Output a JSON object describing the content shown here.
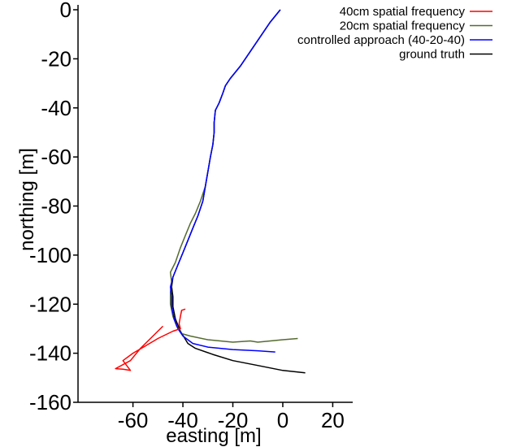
{
  "chart_data": {
    "type": "line",
    "xlabel": "easting [m]",
    "ylabel": "northing [m]",
    "xlim": [
      -82,
      28
    ],
    "ylim": [
      -160,
      0
    ],
    "xticks": [
      -60,
      -40,
      -20,
      0,
      20
    ],
    "yticks": [
      0,
      -20,
      -40,
      -60,
      -80,
      -100,
      -120,
      -140,
      -160
    ],
    "grid": false,
    "legend_position": "top-right",
    "series": [
      {
        "name": "40cm spatial frequency",
        "color": "#ff0000",
        "points": [
          [
            -39,
            -122
          ],
          [
            -40.5,
            -122.5
          ],
          [
            -41,
            -125
          ],
          [
            -41.5,
            -128
          ],
          [
            -41,
            -130
          ],
          [
            -44,
            -131
          ],
          [
            -50,
            -134
          ],
          [
            -55,
            -137
          ],
          [
            -60,
            -140
          ],
          [
            -64,
            -143
          ],
          [
            -61,
            -147
          ],
          [
            -64,
            -146.5
          ],
          [
            -67,
            -146.3
          ],
          [
            -61,
            -143
          ],
          [
            -57,
            -138
          ],
          [
            -52,
            -133
          ],
          [
            -48,
            -129
          ]
        ]
      },
      {
        "name": "20cm spatial frequency",
        "color": "#556b2f",
        "points": [
          [
            -1,
            0
          ],
          [
            -5,
            -5
          ],
          [
            -9,
            -11
          ],
          [
            -13,
            -17
          ],
          [
            -17,
            -23
          ],
          [
            -21,
            -28
          ],
          [
            -23,
            -31
          ],
          [
            -24,
            -34
          ],
          [
            -25.5,
            -38
          ],
          [
            -27,
            -41
          ],
          [
            -27.5,
            -46
          ],
          [
            -27.5,
            -50
          ],
          [
            -28,
            -55
          ],
          [
            -29,
            -60
          ],
          [
            -30,
            -66
          ],
          [
            -31,
            -72
          ],
          [
            -33,
            -78
          ],
          [
            -35,
            -83
          ],
          [
            -37,
            -87
          ],
          [
            -39,
            -92
          ],
          [
            -41,
            -97
          ],
          [
            -43,
            -103
          ],
          [
            -45,
            -107
          ],
          [
            -44.5,
            -111
          ],
          [
            -45,
            -115
          ],
          [
            -45,
            -120
          ],
          [
            -44,
            -125
          ],
          [
            -42.5,
            -129
          ],
          [
            -40.5,
            -132
          ],
          [
            -37,
            -133
          ],
          [
            -30,
            -134.5
          ],
          [
            -20,
            -135.5
          ],
          [
            -13,
            -135
          ],
          [
            -10,
            -135.5
          ],
          [
            -5,
            -135
          ],
          [
            0,
            -134.5
          ],
          [
            6,
            -134
          ]
        ]
      },
      {
        "name": "controlled approach (40-20-40)",
        "color": "#0000ff",
        "points": [
          [
            -1,
            0
          ],
          [
            -5,
            -5
          ],
          [
            -9,
            -11
          ],
          [
            -13,
            -17
          ],
          [
            -17,
            -23
          ],
          [
            -21,
            -28
          ],
          [
            -23,
            -31
          ],
          [
            -24,
            -34
          ],
          [
            -25.5,
            -38
          ],
          [
            -27,
            -41
          ],
          [
            -27.5,
            -46
          ],
          [
            -27.5,
            -50
          ],
          [
            -28,
            -55
          ],
          [
            -29,
            -60
          ],
          [
            -30,
            -66
          ],
          [
            -31,
            -72
          ],
          [
            -32,
            -78
          ],
          [
            -34,
            -84
          ],
          [
            -36,
            -89
          ],
          [
            -38,
            -94
          ],
          [
            -40,
            -99
          ],
          [
            -42,
            -104
          ],
          [
            -44,
            -109
          ],
          [
            -45,
            -113
          ],
          [
            -44.5,
            -117
          ],
          [
            -44.5,
            -121
          ],
          [
            -43.5,
            -126
          ],
          [
            -42,
            -130
          ],
          [
            -40,
            -133
          ],
          [
            -36,
            -136
          ],
          [
            -30,
            -137.5
          ],
          [
            -20,
            -138.5
          ],
          [
            -10,
            -139
          ],
          [
            -3,
            -139.5
          ]
        ]
      },
      {
        "name": "ground truth",
        "color": "#000000",
        "points": [
          [
            -1,
            0
          ],
          [
            -5,
            -5
          ],
          [
            -9,
            -11
          ],
          [
            -13,
            -17
          ],
          [
            -17,
            -23
          ],
          [
            -21,
            -28
          ],
          [
            -23,
            -31
          ],
          [
            -24,
            -34
          ],
          [
            -25.5,
            -38
          ],
          [
            -27,
            -41
          ],
          [
            -27.5,
            -46
          ],
          [
            -27.5,
            -50
          ],
          [
            -28,
            -55
          ],
          [
            -29,
            -60
          ],
          [
            -30,
            -66
          ],
          [
            -31,
            -72
          ],
          [
            -32,
            -78
          ],
          [
            -34,
            -84
          ],
          [
            -36,
            -89
          ],
          [
            -38,
            -94
          ],
          [
            -40,
            -99
          ],
          [
            -42,
            -104
          ],
          [
            -44,
            -109
          ],
          [
            -44.5,
            -113
          ],
          [
            -44,
            -117
          ],
          [
            -44,
            -121
          ],
          [
            -43,
            -126
          ],
          [
            -41,
            -131
          ],
          [
            -38,
            -136
          ],
          [
            -35,
            -138
          ],
          [
            -28,
            -140.5
          ],
          [
            -20,
            -143
          ],
          [
            -10,
            -145
          ],
          [
            0,
            -147
          ],
          [
            9,
            -148
          ]
        ]
      }
    ]
  }
}
